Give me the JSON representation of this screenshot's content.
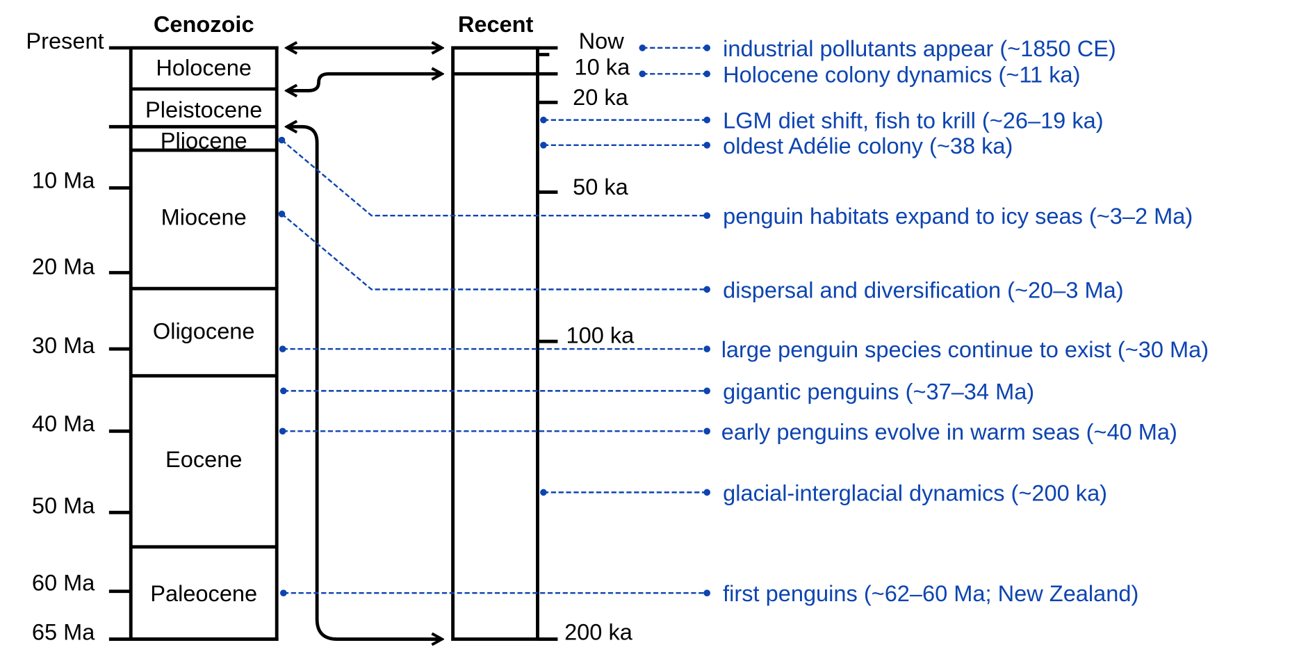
{
  "headers": {
    "cenozoic": "Cenozoic",
    "recent": "Recent"
  },
  "left_ticks": [
    "Present",
    "10 Ma",
    "20 Ma",
    "30 Ma",
    "40 Ma",
    "50 Ma",
    "60 Ma",
    "65 Ma"
  ],
  "epochs": [
    "Holocene",
    "Pleistocene",
    "Pliocene",
    "Miocene",
    "Oligocene",
    "Eocene",
    "Paleocene"
  ],
  "right_ticks": [
    "Now",
    "10 ka",
    "20 ka",
    "50 ka",
    "100 ka",
    "200 ka"
  ],
  "events": [
    "industrial pollutants appear (~1850 CE)",
    "Holocene colony dynamics (~11 ka)",
    "LGM diet shift, fish to krill (~26–19 ka)",
    "oldest Adélie colony (~38 ka)",
    "penguin habitats expand to icy seas (~3–2 Ma)",
    "dispersal and diversification (~20–3 Ma)",
    "large penguin species continue to exist (~30 Ma)",
    "gigantic penguins (~37–34 Ma)",
    "early penguins evolve in warm seas (~40 Ma)",
    "glacial-interglacial dynamics (~200 ka)",
    "first penguins (~62–60 Ma; New Zealand)"
  ],
  "colors": {
    "event": "#0d44b0",
    "gradient_top": "#ffffff",
    "gradient_bottom": "#a9c9ea",
    "recent_fill": "#f3f7fc"
  }
}
